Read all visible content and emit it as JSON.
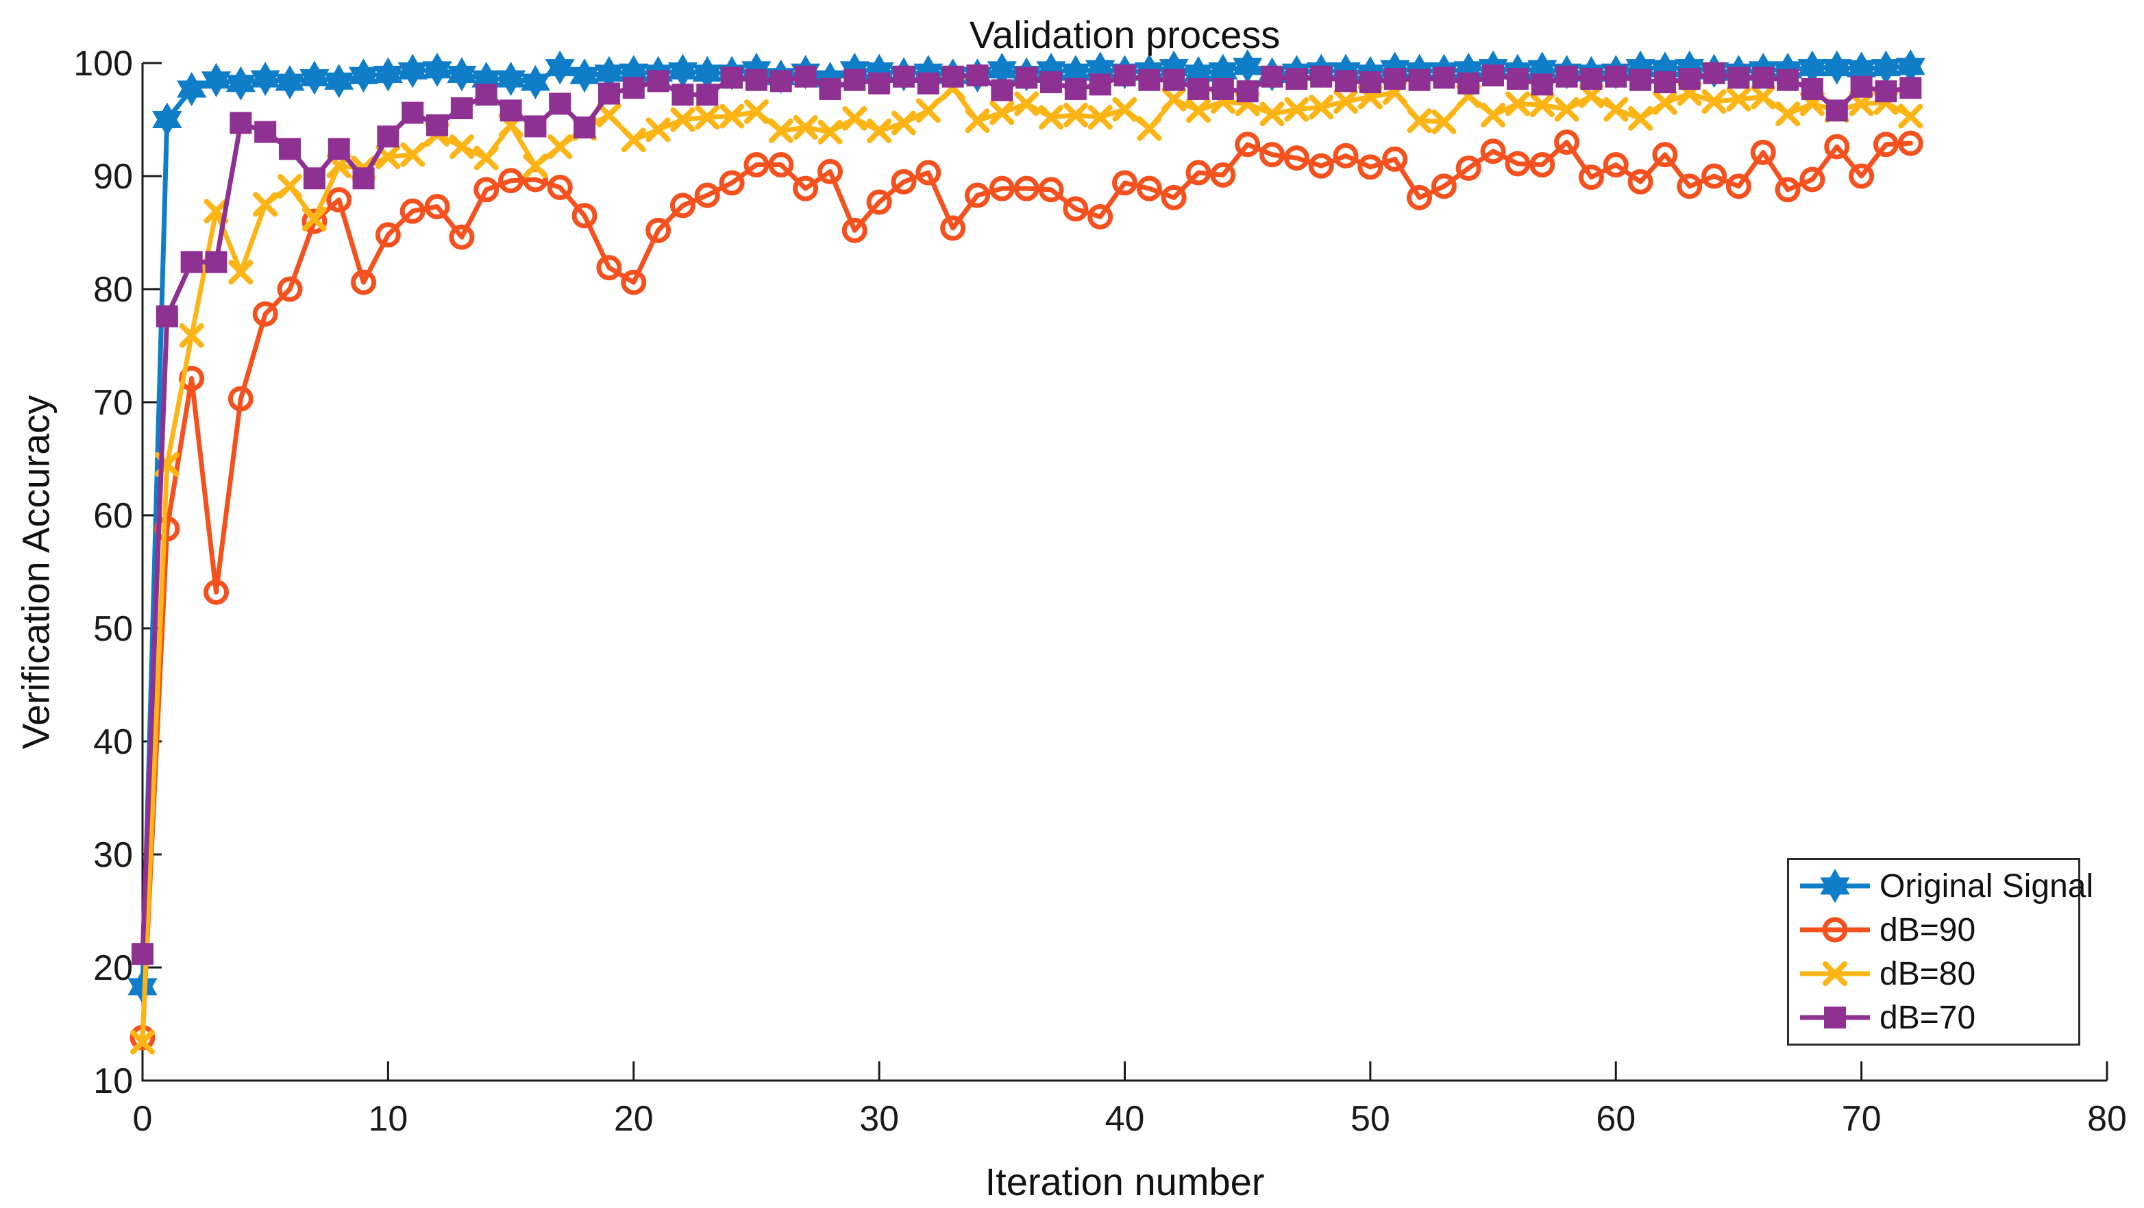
{
  "figure": {
    "title": "Validation process",
    "xlabel": "Iteration number",
    "ylabel": "Verification Accuracy",
    "background": "#ffffff",
    "axis_color": "#1a1a1a"
  },
  "chart_data": {
    "type": "line",
    "title": "Validation process",
    "xlabel": "Iteration number",
    "ylabel": "Verification Accuracy",
    "xlim": [
      0,
      80
    ],
    "ylim": [
      10,
      100
    ],
    "xticks": [
      0,
      10,
      20,
      30,
      40,
      50,
      60,
      70,
      80
    ],
    "yticks": [
      10,
      20,
      30,
      40,
      50,
      60,
      70,
      80,
      90,
      100
    ],
    "grid": false,
    "legend_position": "lower right",
    "x": [
      0,
      1,
      2,
      3,
      4,
      5,
      6,
      7,
      8,
      9,
      10,
      11,
      12,
      13,
      14,
      15,
      16,
      17,
      18,
      19,
      20,
      21,
      22,
      23,
      24,
      25,
      26,
      27,
      28,
      29,
      30,
      31,
      32,
      33,
      34,
      35,
      36,
      37,
      38,
      39,
      40,
      41,
      42,
      43,
      44,
      45,
      46,
      47,
      48,
      49,
      50,
      51,
      52,
      53,
      54,
      55,
      56,
      57,
      58,
      59,
      60,
      61,
      62,
      63,
      64,
      65,
      66,
      67,
      68,
      69,
      70,
      71,
      72
    ],
    "series": [
      {
        "name": "Original Signal",
        "color": "#0F7DC8",
        "marker": "hexagram",
        "values": [
          18.3,
          95.0,
          97.7,
          98.5,
          98.2,
          98.6,
          98.3,
          98.7,
          98.4,
          98.9,
          99.0,
          99.3,
          99.4,
          99.0,
          98.6,
          98.6,
          98.3,
          99.6,
          98.9,
          99.1,
          99.2,
          99.1,
          99.3,
          99.1,
          99.1,
          99.4,
          98.8,
          99.2,
          98.6,
          99.4,
          99.3,
          99.0,
          99.2,
          98.9,
          98.9,
          99.4,
          99.0,
          99.4,
          99.2,
          99.5,
          99.2,
          99.3,
          99.6,
          99.1,
          99.3,
          99.7,
          99.0,
          99.2,
          99.3,
          99.3,
          99.1,
          99.5,
          99.3,
          99.3,
          99.4,
          99.6,
          99.3,
          99.5,
          99.2,
          99.1,
          99.2,
          99.6,
          99.5,
          99.6,
          99.3,
          99.2,
          99.4,
          99.4,
          99.6,
          99.6,
          99.5,
          99.6,
          99.7
        ]
      },
      {
        "name": "dB=90",
        "color": "#F4511E",
        "marker": "circle",
        "values": [
          13.8,
          58.8,
          72.1,
          53.2,
          70.3,
          77.8,
          80.0,
          86.0,
          87.9,
          80.6,
          84.8,
          86.9,
          87.3,
          84.6,
          88.8,
          89.6,
          89.7,
          89.0,
          86.5,
          81.9,
          80.6,
          85.2,
          87.4,
          88.3,
          89.4,
          91.0,
          91.0,
          88.9,
          90.4,
          85.2,
          87.7,
          89.5,
          90.3,
          85.4,
          88.3,
          88.9,
          88.9,
          88.8,
          87.1,
          86.4,
          89.4,
          88.9,
          88.1,
          90.3,
          90.1,
          92.8,
          91.9,
          91.6,
          90.9,
          91.8,
          90.8,
          91.5,
          88.1,
          89.1,
          90.7,
          92.2,
          91.1,
          91.0,
          93.0,
          89.9,
          91.0,
          89.5,
          91.9,
          89.1,
          90.0,
          89.1,
          92.1,
          88.8,
          89.7,
          92.6,
          90.0,
          92.8,
          92.9
        ]
      },
      {
        "name": "dB=80",
        "color": "#FDB515",
        "marker": "x",
        "values": [
          13.4,
          64.5,
          75.9,
          86.9,
          81.5,
          87.5,
          89.1,
          86.2,
          90.9,
          90.7,
          91.7,
          91.9,
          93.7,
          92.6,
          91.6,
          94.5,
          90.9,
          92.6,
          94.2,
          95.4,
          93.2,
          94.1,
          95.0,
          95.2,
          95.3,
          95.7,
          94.0,
          94.3,
          93.9,
          95.1,
          94.0,
          94.7,
          95.8,
          97.8,
          94.9,
          95.6,
          96.4,
          95.2,
          95.4,
          95.2,
          95.9,
          94.2,
          96.8,
          95.8,
          96.6,
          96.4,
          95.5,
          95.9,
          96.1,
          96.6,
          97.0,
          97.4,
          94.9,
          94.8,
          97.1,
          95.4,
          96.4,
          96.3,
          95.9,
          97.1,
          95.9,
          95.1,
          96.5,
          97.3,
          96.6,
          96.8,
          97.0,
          95.5,
          96.4,
          95.8,
          96.4,
          96.5,
          95.3
        ]
      },
      {
        "name": "dB=70",
        "color": "#8E3192",
        "marker": "square",
        "values": [
          21.2,
          77.6,
          82.4,
          82.4,
          94.7,
          93.9,
          92.4,
          89.8,
          92.4,
          89.8,
          93.5,
          95.6,
          94.5,
          96.0,
          97.2,
          95.8,
          94.4,
          96.4,
          94.3,
          97.3,
          97.8,
          98.4,
          97.2,
          97.2,
          98.7,
          98.5,
          98.4,
          98.8,
          97.7,
          98.5,
          98.2,
          98.8,
          98.2,
          98.8,
          98.9,
          97.6,
          98.7,
          98.3,
          97.7,
          98.1,
          98.9,
          98.5,
          98.5,
          97.7,
          97.7,
          97.5,
          98.8,
          98.6,
          98.8,
          98.4,
          98.3,
          98.6,
          98.5,
          98.7,
          98.2,
          98.9,
          98.6,
          98.1,
          98.8,
          98.6,
          98.8,
          98.5,
          98.3,
          98.6,
          99.1,
          98.7,
          98.7,
          98.5,
          97.7,
          95.8,
          97.9,
          97.5,
          97.8
        ]
      }
    ]
  }
}
